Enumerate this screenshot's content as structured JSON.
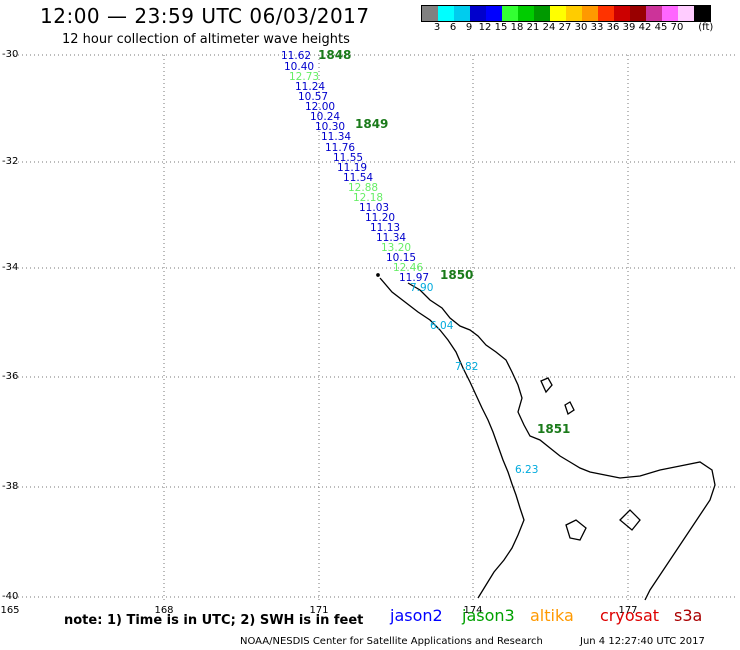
{
  "header": {
    "title": "12:00 — 23:59 UTC 06/03/2017",
    "subtitle": "12 hour collection of altimeter wave heights"
  },
  "legend": {
    "unit": "(ft)",
    "ticks": [
      "3",
      "6",
      "9",
      "12",
      "15",
      "18",
      "21",
      "24",
      "27",
      "30",
      "33",
      "36",
      "39",
      "42",
      "45",
      "70"
    ],
    "colors": [
      "#808080",
      "#00ffff",
      "#00ccee",
      "#0000cc",
      "#0000ff",
      "#33ff33",
      "#00cc00",
      "#009900",
      "#ffff00",
      "#ffcc00",
      "#ff9900",
      "#ff3300",
      "#cc0000",
      "#990000",
      "#cc3399",
      "#ff66ff",
      "#ffccff",
      "#000000"
    ]
  },
  "axes": {
    "lat_labels": [
      "-30",
      "-32",
      "-34",
      "-36",
      "-38",
      "-40"
    ],
    "lon_labels": [
      "165",
      "168",
      "171",
      "174",
      "177"
    ]
  },
  "track": {
    "times": [
      "1848",
      "1849",
      "1850",
      "1851"
    ],
    "wave_heights": [
      {
        "v": "11.62",
        "c": "#0000cc"
      },
      {
        "v": "10.40",
        "c": "#0000cc"
      },
      {
        "v": "12.73",
        "c": "#66ee66"
      },
      {
        "v": "11.24",
        "c": "#0000cc"
      },
      {
        "v": "10.57",
        "c": "#0000cc"
      },
      {
        "v": "12.00",
        "c": "#0000cc"
      },
      {
        "v": "10.24",
        "c": "#0000cc"
      },
      {
        "v": "10.30",
        "c": "#0000cc"
      },
      {
        "v": "11.34",
        "c": "#0000cc"
      },
      {
        "v": "11.76",
        "c": "#0000cc"
      },
      {
        "v": "11.55",
        "c": "#0000cc"
      },
      {
        "v": "11.19",
        "c": "#0000cc"
      },
      {
        "v": "11.54",
        "c": "#0000cc"
      },
      {
        "v": "12.88",
        "c": "#66ee66"
      },
      {
        "v": "12.18",
        "c": "#66ee66"
      },
      {
        "v": "11.03",
        "c": "#0000cc"
      },
      {
        "v": "11.20",
        "c": "#0000cc"
      },
      {
        "v": "11.13",
        "c": "#0000cc"
      },
      {
        "v": "11.34",
        "c": "#0000cc"
      },
      {
        "v": "13.20",
        "c": "#66ee66"
      },
      {
        "v": "10.15",
        "c": "#0000cc"
      },
      {
        "v": "12.46",
        "c": "#66ee66"
      },
      {
        "v": "11.97",
        "c": "#0000cc"
      },
      {
        "v": "7.90",
        "c": "#00aadd"
      },
      {
        "v": "6.04",
        "c": "#00aadd"
      },
      {
        "v": "7.82",
        "c": "#00aadd"
      },
      {
        "v": "6.23",
        "c": "#00aadd"
      }
    ]
  },
  "note": "note: 1) Time is in UTC; 2) SWH is in feet",
  "satellites": [
    {
      "name": "jason2",
      "color": "#0000ff"
    },
    {
      "name": "jason3",
      "color": "#00a000"
    },
    {
      "name": "altika",
      "color": "#ff9900"
    },
    {
      "name": "cryosat",
      "color": "#dd0000"
    },
    {
      "name": "s3a",
      "color": "#aa0000"
    }
  ],
  "footer": {
    "credit": "NOAA/NESDIS Center for Satellite Applications and Research",
    "timestamp": "Jun  4 12:27:40 UTC 2017"
  }
}
